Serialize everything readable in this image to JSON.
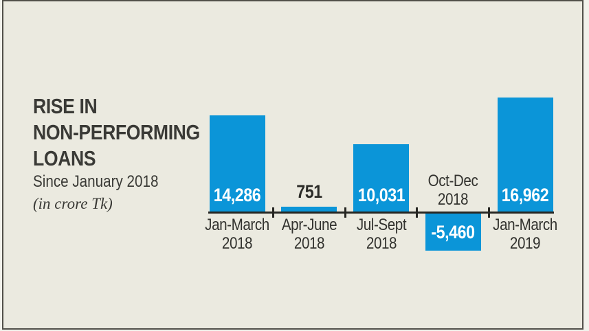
{
  "colors": {
    "background": "#ebeae0",
    "frame_border": "#51504a",
    "bar_blue": "#0b95d8",
    "axis_black": "#262622",
    "text_dark": "#3a3a36",
    "value_white": "#ffffff"
  },
  "header": {
    "title_lines": [
      "RISE IN",
      "NON-PERFORMING",
      "LOANS"
    ],
    "subtitle": "Since January 2018",
    "unit_note": "(in crore Tk)"
  },
  "chart_data": {
    "type": "bar",
    "title": "RISE IN NON-PERFORMING LOANS",
    "subtitle": "Since January 2018",
    "unit": "crore Tk",
    "categories": [
      "Jan-March 2018",
      "Apr-June 2018",
      "Jul-Sept 2018",
      "Oct-Dec 2018",
      "Jan-March 2019"
    ],
    "values": [
      14286,
      751,
      10031,
      -5460,
      16962
    ],
    "value_labels": [
      "14,286",
      "751",
      "10,031",
      "-5,460",
      "16,962"
    ],
    "category_label_lines": [
      [
        "Jan-March",
        "2018"
      ],
      [
        "Apr-June",
        "2018"
      ],
      [
        "Jul-Sept",
        "2018"
      ],
      [
        "Oct-Dec",
        "2018"
      ],
      [
        "Jan-March",
        "2019"
      ]
    ],
    "value_label_styles": [
      "inside-white",
      "above-black",
      "inside-white",
      "inside-white",
      "inside-white"
    ],
    "category_label_positions": [
      "below",
      "below",
      "below",
      "above",
      "below"
    ],
    "bar_color": "#0b95d8",
    "baseline_value": 0,
    "gridlines": false,
    "legend": false,
    "xlabel": "",
    "ylabel": ""
  }
}
